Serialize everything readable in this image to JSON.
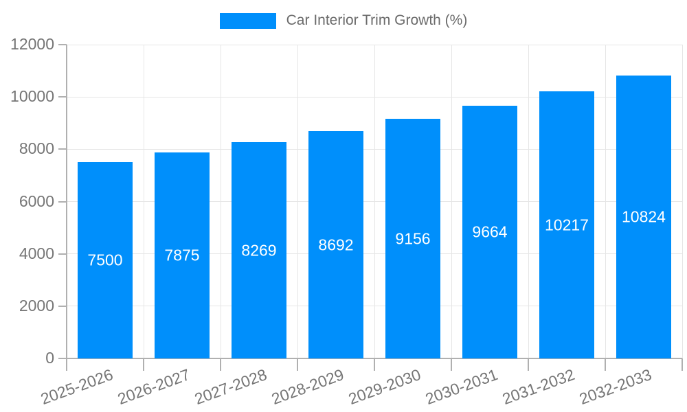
{
  "legend": {
    "label": "Car Interior Trim Growth (%)"
  },
  "chart_data": {
    "type": "bar",
    "title": "Car Interior Trim Growth (%)",
    "categories": [
      "2025-2026",
      "2026-2027",
      "2027-2028",
      "2028-2029",
      "2029-2030",
      "2030-2031",
      "2031-2032",
      "2032-2033"
    ],
    "values": [
      7500,
      7875,
      8269,
      8692,
      9156,
      9664,
      10217,
      10824
    ],
    "value_labels": [
      "7500",
      "7875",
      "8269",
      "8692",
      "9156",
      "9664",
      "10217",
      "10824"
    ],
    "xlabel": "",
    "ylabel": "",
    "ylim": [
      0,
      12000
    ],
    "yticks": [
      0,
      2000,
      4000,
      6000,
      8000,
      10000,
      12000
    ],
    "ytick_labels": [
      "0",
      "2000",
      "4000",
      "6000",
      "8000",
      "10000",
      "12000"
    ],
    "grid": "on",
    "legend_position": "top-center",
    "bar_color": "#008FFB",
    "value_label_color": "#ffffff"
  },
  "colors": {
    "bar": "#008FFB",
    "grid": "#e6e6e6",
    "axis": "#b0b0b0",
    "tick_text": "#757575",
    "legend_text": "#6b6b6b",
    "background": "#ffffff"
  }
}
